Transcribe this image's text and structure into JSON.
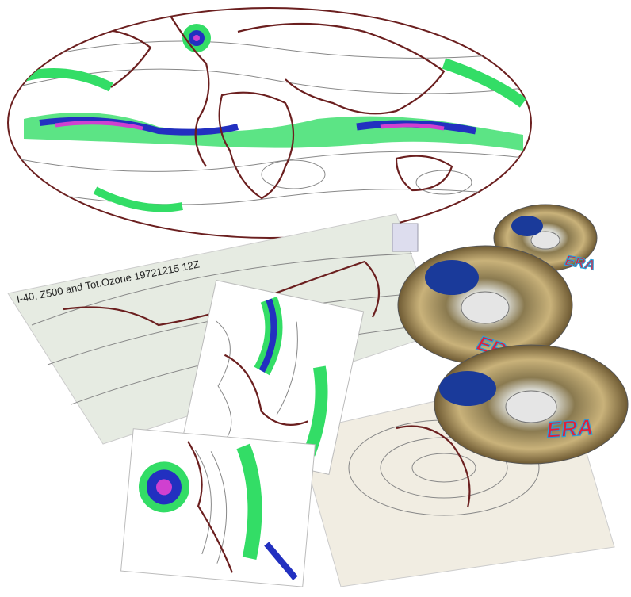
{
  "sheet_title": "I-40, Z500 and Tot.Ozone 19721215 12Z",
  "cd_labels": [
    "ERA",
    "ERA",
    "ERA"
  ]
}
